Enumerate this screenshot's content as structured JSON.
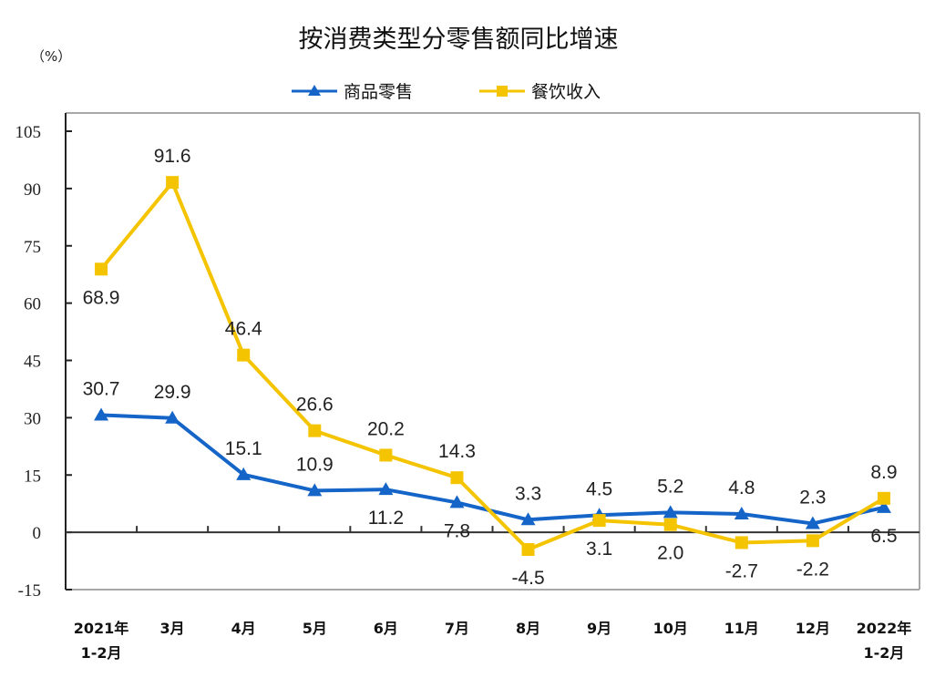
{
  "chart_data": {
    "type": "line",
    "title": "按消费类型分零售额同比增速",
    "unit_label": "（%）",
    "xlabel": "",
    "ylabel": "%",
    "ylim": [
      -15,
      105
    ],
    "yticks": [
      -15,
      0,
      15,
      30,
      45,
      60,
      75,
      90,
      105
    ],
    "ytick_labels": [
      "-15",
      "0",
      "15",
      "30",
      "45",
      "60",
      "75",
      "90",
      "105"
    ],
    "grid": false,
    "legend_position": "top-center",
    "categories": [
      [
        "2021年",
        "1-2月"
      ],
      [
        "3月"
      ],
      [
        "4月"
      ],
      [
        "5月"
      ],
      [
        "6月"
      ],
      [
        "7月"
      ],
      [
        "8月"
      ],
      [
        "9月"
      ],
      [
        "10月"
      ],
      [
        "11月"
      ],
      [
        "12月"
      ],
      [
        "2022年",
        "1-2月"
      ]
    ],
    "series": [
      {
        "name": "商品零售",
        "color": "#1565c8",
        "marker": "triangle",
        "values": [
          30.7,
          29.9,
          15.1,
          10.9,
          11.2,
          7.8,
          3.3,
          4.5,
          5.2,
          4.8,
          2.3,
          6.5
        ],
        "labels": [
          "30.7",
          "29.9",
          "15.1",
          "10.9",
          "11.2",
          "7.8",
          "3.3",
          "4.5",
          "5.2",
          "4.8",
          "2.3",
          "6.5"
        ],
        "label_side": [
          "above",
          "above",
          "above",
          "above",
          "below",
          "below",
          "above",
          "above",
          "above",
          "above",
          "above",
          "below"
        ]
      },
      {
        "name": "餐饮收入",
        "color": "#f5c400",
        "marker": "square",
        "values": [
          68.9,
          91.6,
          46.4,
          26.6,
          20.2,
          14.3,
          -4.5,
          3.1,
          2.0,
          -2.7,
          -2.2,
          8.9
        ],
        "labels": [
          "68.9",
          "91.6",
          "46.4",
          "26.6",
          "20.2",
          "14.3",
          "-4.5",
          "3.1",
          "2.0",
          "-2.7",
          "-2.2",
          "8.9"
        ],
        "label_side": [
          "below",
          "above",
          "above",
          "above",
          "above",
          "above",
          "below",
          "below",
          "below",
          "below",
          "below",
          "above"
        ]
      }
    ]
  }
}
